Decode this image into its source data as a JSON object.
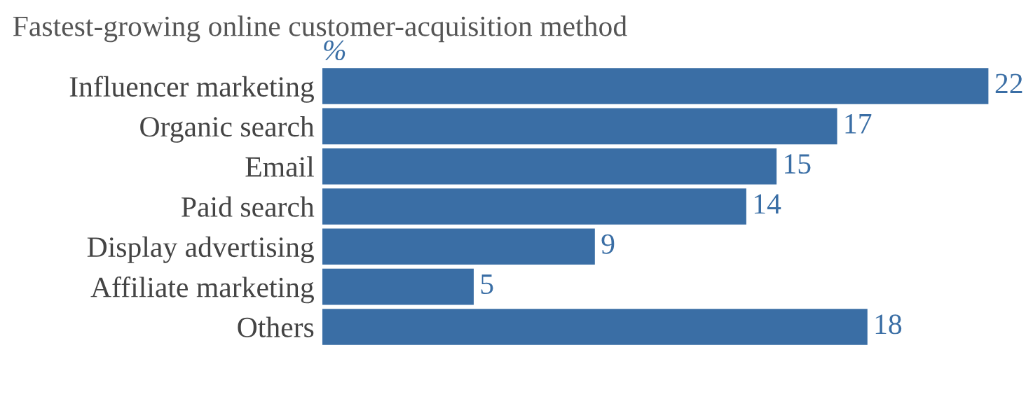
{
  "chart_data": {
    "type": "bar",
    "orientation": "horizontal",
    "title": "Fastest-growing online customer-acquisition method",
    "xlabel": "%",
    "categories": [
      "Influencer marketing",
      "Organic search",
      "Email",
      "Paid search",
      "Display advertising",
      "Affiliate marketing",
      "Others"
    ],
    "values": [
      22,
      17,
      15,
      14,
      9,
      5,
      18
    ],
    "color": "#3a6ea5",
    "data_labels": true,
    "grid": false,
    "legend": false
  }
}
